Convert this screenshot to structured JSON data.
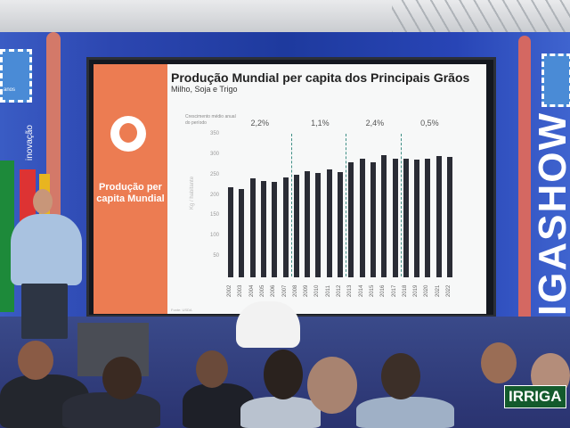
{
  "banner": {
    "brand_right": "IRRIGASHOW",
    "tagline_left": "inovação",
    "stamp_text": "anos"
  },
  "slide": {
    "side_title": "Produção per capita Mundial",
    "title": "Produção Mundial per capita dos Principais Grãos",
    "subtitle": "Milho, Soja e Trigo",
    "source": "Fonte: USDA"
  },
  "chart_data": {
    "type": "bar",
    "title": "Produção Mundial per capita dos Principais Grãos",
    "subtitle": "Milho, Soja e Trigo",
    "ylabel": "Kg / habitante",
    "ylim": [
      0,
      350
    ],
    "yticks": [
      "50",
      "100",
      "150",
      "200",
      "250",
      "300",
      "350"
    ],
    "categories": [
      "2002",
      "2003",
      "2004",
      "2005",
      "2006",
      "2007",
      "2008",
      "2009",
      "2010",
      "2011",
      "2012",
      "2013",
      "2014",
      "2015",
      "2016",
      "2017",
      "2018",
      "2019",
      "2020",
      "2021",
      "2022"
    ],
    "values": [
      220,
      216,
      243,
      237,
      235,
      245,
      252,
      261,
      255,
      264,
      258,
      283,
      290,
      282,
      300,
      290,
      292,
      288,
      292,
      298,
      296
    ],
    "bar_color": "#2a2c35",
    "period_label": "Crescimento médio anual do período",
    "periods": [
      {
        "label": "2,2%",
        "from": "2002",
        "to": "2007"
      },
      {
        "label": "1,1%",
        "from": "2008",
        "to": "2012"
      },
      {
        "label": "2,4%",
        "from": "2013",
        "to": "2017"
      },
      {
        "label": "0,5%",
        "from": "2018",
        "to": "2022"
      }
    ],
    "grid": false
  },
  "overlay": {
    "tag": "IRRIGA"
  }
}
